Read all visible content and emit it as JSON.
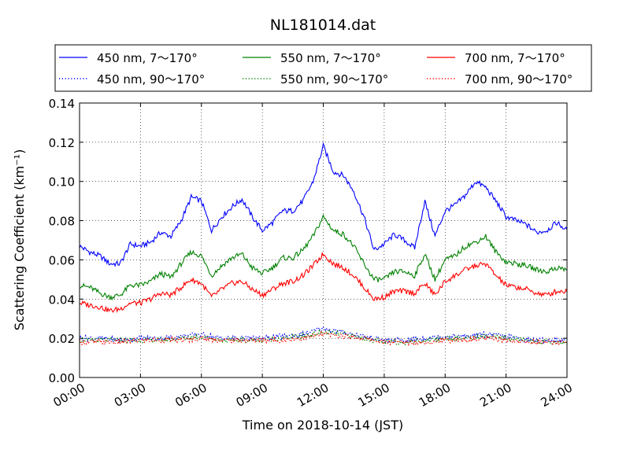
{
  "chart_data": {
    "type": "line",
    "title": "NL181014.dat",
    "xlabel": "Time on 2018-10-14 (JST)",
    "ylabel": "Scattering Coefficient (km⁻¹)",
    "xlim": [
      0,
      24
    ],
    "ylim": [
      0,
      0.14
    ],
    "x_ticks": [
      "00:00",
      "03:00",
      "06:00",
      "09:00",
      "12:00",
      "15:00",
      "18:00",
      "21:00",
      "24:00"
    ],
    "y_ticks": [
      "0.00",
      "0.02",
      "0.04",
      "0.06",
      "0.08",
      "0.10",
      "0.12",
      "0.14"
    ],
    "grid": true,
    "legend_position": "top",
    "series": [
      {
        "name": "450 nm, 7～170°",
        "color": "#0000ff",
        "style": "solid",
        "x": [
          0,
          0.5,
          1,
          1.5,
          2,
          2.5,
          3,
          3.5,
          4,
          4.5,
          5,
          5.5,
          6,
          6.5,
          7,
          7.5,
          8,
          8.5,
          9,
          9.5,
          10,
          10.5,
          11,
          11.5,
          12,
          12.5,
          13,
          13.5,
          14,
          14.5,
          15,
          15.5,
          16,
          16.5,
          17,
          17.5,
          18,
          18.5,
          19,
          19.5,
          20,
          20.5,
          21,
          21.5,
          22,
          22.5,
          23,
          23.5,
          24
        ],
        "values": [
          0.067,
          0.064,
          0.062,
          0.058,
          0.058,
          0.068,
          0.067,
          0.069,
          0.074,
          0.072,
          0.08,
          0.092,
          0.09,
          0.075,
          0.082,
          0.087,
          0.091,
          0.082,
          0.075,
          0.079,
          0.085,
          0.085,
          0.09,
          0.1,
          0.118,
          0.105,
          0.103,
          0.095,
          0.082,
          0.065,
          0.068,
          0.073,
          0.07,
          0.066,
          0.09,
          0.072,
          0.085,
          0.088,
          0.093,
          0.1,
          0.097,
          0.09,
          0.082,
          0.08,
          0.078,
          0.074,
          0.075,
          0.079,
          0.075
        ]
      },
      {
        "name": "550 nm, 7～170°",
        "color": "#008000",
        "style": "solid",
        "x": [
          0,
          0.5,
          1,
          1.5,
          2,
          2.5,
          3,
          3.5,
          4,
          4.5,
          5,
          5.5,
          6,
          6.5,
          7,
          7.5,
          8,
          8.5,
          9,
          9.5,
          10,
          10.5,
          11,
          11.5,
          12,
          12.5,
          13,
          13.5,
          14,
          14.5,
          15,
          15.5,
          16,
          16.5,
          17,
          17.5,
          18,
          18.5,
          19,
          19.5,
          20,
          20.5,
          21,
          21.5,
          22,
          22.5,
          23,
          23.5,
          24
        ],
        "values": [
          0.047,
          0.046,
          0.043,
          0.041,
          0.042,
          0.047,
          0.047,
          0.049,
          0.053,
          0.051,
          0.058,
          0.064,
          0.062,
          0.052,
          0.057,
          0.061,
          0.063,
          0.056,
          0.053,
          0.056,
          0.061,
          0.061,
          0.065,
          0.072,
          0.082,
          0.075,
          0.073,
          0.067,
          0.058,
          0.05,
          0.05,
          0.054,
          0.054,
          0.052,
          0.063,
          0.05,
          0.06,
          0.062,
          0.067,
          0.069,
          0.072,
          0.064,
          0.059,
          0.058,
          0.057,
          0.055,
          0.054,
          0.056,
          0.055
        ]
      },
      {
        "name": "700 nm, 7～170°",
        "color": "#ff0000",
        "style": "solid",
        "x": [
          0,
          0.5,
          1,
          1.5,
          2,
          2.5,
          3,
          3.5,
          4,
          4.5,
          5,
          5.5,
          6,
          6.5,
          7,
          7.5,
          8,
          8.5,
          9,
          9.5,
          10,
          10.5,
          11,
          11.5,
          12,
          12.5,
          13,
          13.5,
          14,
          14.5,
          15,
          15.5,
          16,
          16.5,
          17,
          17.5,
          18,
          18.5,
          19,
          19.5,
          20,
          20.5,
          21,
          21.5,
          22,
          22.5,
          23,
          23.5,
          24
        ],
        "values": [
          0.038,
          0.037,
          0.036,
          0.034,
          0.035,
          0.038,
          0.038,
          0.04,
          0.043,
          0.042,
          0.046,
          0.05,
          0.048,
          0.041,
          0.045,
          0.048,
          0.049,
          0.045,
          0.042,
          0.045,
          0.048,
          0.049,
          0.052,
          0.057,
          0.063,
          0.058,
          0.056,
          0.052,
          0.046,
          0.04,
          0.041,
          0.044,
          0.044,
          0.043,
          0.048,
          0.042,
          0.049,
          0.052,
          0.055,
          0.057,
          0.058,
          0.052,
          0.047,
          0.046,
          0.045,
          0.043,
          0.042,
          0.044,
          0.044
        ]
      },
      {
        "name": "450 nm, 90～170°",
        "color": "#0000ff",
        "style": "dotted",
        "x": [
          0,
          1,
          2,
          3,
          4,
          5,
          6,
          7,
          8,
          9,
          10,
          11,
          12,
          13,
          14,
          15,
          16,
          17,
          18,
          19,
          20,
          21,
          22,
          23,
          24
        ],
        "values": [
          0.02,
          0.02,
          0.019,
          0.02,
          0.02,
          0.021,
          0.022,
          0.02,
          0.02,
          0.02,
          0.021,
          0.022,
          0.025,
          0.023,
          0.021,
          0.019,
          0.019,
          0.02,
          0.021,
          0.021,
          0.022,
          0.021,
          0.019,
          0.019,
          0.019
        ]
      },
      {
        "name": "550 nm, 90～170°",
        "color": "#008000",
        "style": "dotted",
        "x": [
          0,
          1,
          2,
          3,
          4,
          5,
          6,
          7,
          8,
          9,
          10,
          11,
          12,
          13,
          14,
          15,
          16,
          17,
          18,
          19,
          20,
          21,
          22,
          23,
          24
        ],
        "values": [
          0.019,
          0.019,
          0.019,
          0.019,
          0.019,
          0.02,
          0.021,
          0.019,
          0.019,
          0.019,
          0.02,
          0.021,
          0.023,
          0.022,
          0.02,
          0.018,
          0.018,
          0.019,
          0.02,
          0.02,
          0.021,
          0.02,
          0.019,
          0.018,
          0.018
        ]
      },
      {
        "name": "700 nm, 90～170°",
        "color": "#ff0000",
        "style": "dotted",
        "x": [
          0,
          1,
          2,
          3,
          4,
          5,
          6,
          7,
          8,
          9,
          10,
          11,
          12,
          13,
          14,
          15,
          16,
          17,
          18,
          19,
          20,
          21,
          22,
          23,
          24
        ],
        "values": [
          0.018,
          0.018,
          0.018,
          0.019,
          0.019,
          0.019,
          0.02,
          0.019,
          0.019,
          0.019,
          0.019,
          0.02,
          0.022,
          0.021,
          0.02,
          0.018,
          0.018,
          0.018,
          0.019,
          0.019,
          0.02,
          0.019,
          0.018,
          0.018,
          0.018
        ]
      }
    ]
  }
}
